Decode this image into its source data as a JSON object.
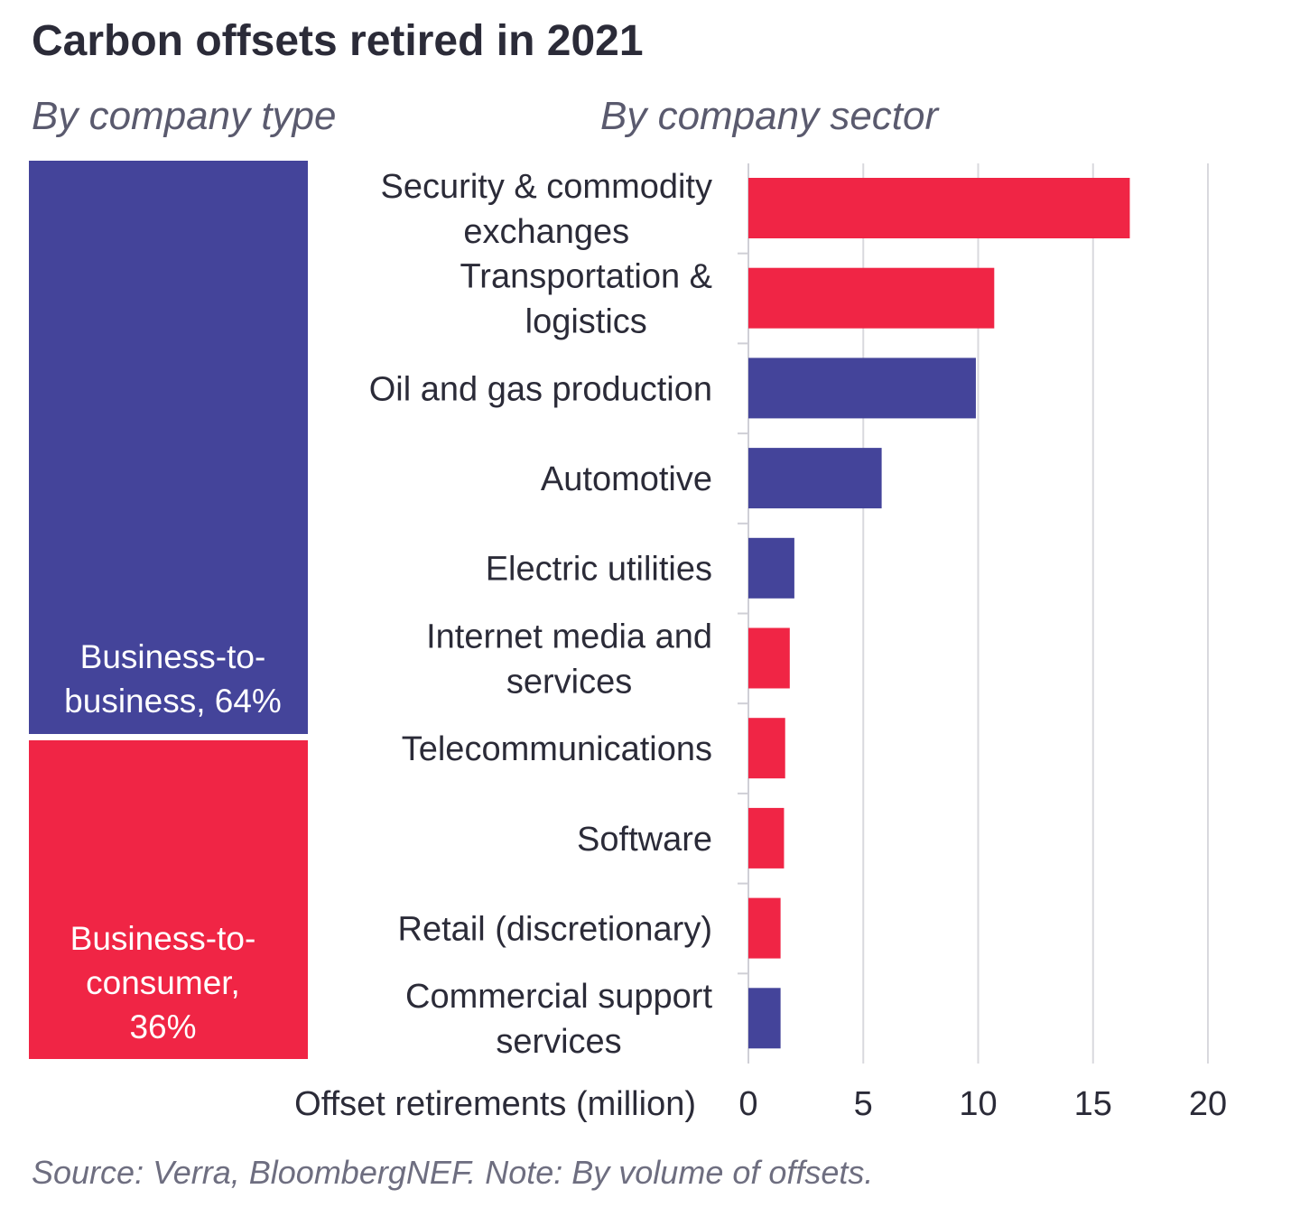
{
  "title": "Carbon offsets retired in 2021",
  "subtitles": {
    "left": "By company type",
    "right": "By company sector"
  },
  "company_type": [
    {
      "label": "Business-to-\nbusiness, 64%",
      "share": 64,
      "color": "#44449a"
    },
    {
      "label": "Business-to-\nconsumer,\n36%",
      "share": 36,
      "color": "#f02545"
    }
  ],
  "chart_data": {
    "type": "bar",
    "orientation": "horizontal",
    "categories": [
      "Security & commodity\nexchanges",
      "Transportation &\nlogistics",
      "Oil and gas production",
      "Automotive",
      "Electric utilities",
      "Internet media and\nservices",
      "Telecommunications",
      "Software",
      "Retail (discretionary)",
      "Commercial support\nservices"
    ],
    "values": [
      16.6,
      10.7,
      9.9,
      5.8,
      2.0,
      1.8,
      1.6,
      1.55,
      1.4,
      1.4
    ],
    "bar_colors": [
      "#f02545",
      "#f02545",
      "#44449a",
      "#44449a",
      "#44449a",
      "#f02545",
      "#f02545",
      "#f02545",
      "#f02545",
      "#44449a"
    ],
    "xlabel": "Offset retirements (million)",
    "xlim": [
      0,
      20
    ],
    "xticks": [
      0,
      5,
      10,
      15,
      20
    ],
    "grid": true
  },
  "footnote": "Source: Verra, BloombergNEF. Note: By volume of offsets."
}
